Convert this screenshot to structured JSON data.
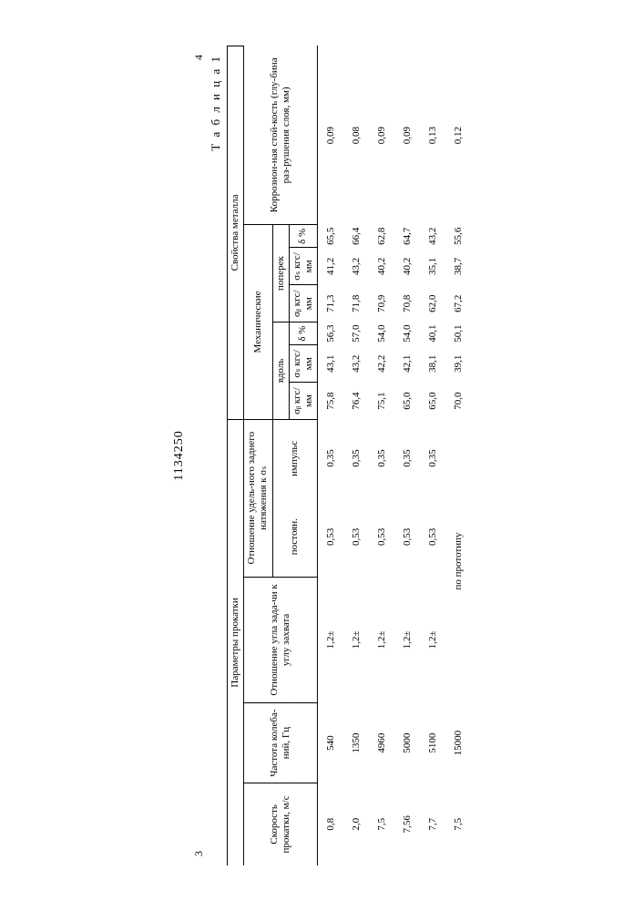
{
  "doc_number": "1134250",
  "page_left": "3",
  "page_right": "4",
  "table_title": "Т а б л и ц а 1",
  "headers": {
    "top_params": "Параметры прокатки",
    "top_props": "Свойства металла",
    "speed": "Скорость прокатки, м/с",
    "freq": "Частота колеба-ний, Гц",
    "angle_ratio": "Отношение угла зада-чи к углу захвата",
    "tension_ratio": "Отношение удель-ного заднего натяжения к σₛ",
    "postoyann": "постоян.",
    "impuls": "импульс",
    "mech": "Механические",
    "vdol": "вдоль",
    "poperek": "поперек",
    "sigma_b": "σᵦ кгс/мм",
    "sigma_s": "σₛ кгс/мм",
    "delta": "δ %",
    "corrosion": "Коррозион-ная стой-кость (глу-бина раз-рушения слоя, мм)"
  },
  "rows": [
    {
      "speed": "0,8",
      "freq": "540",
      "angle": "1,2±",
      "t1": "0,53",
      "t2": "0,35",
      "v_sb": "75,8",
      "v_ss": "43,1",
      "v_d": "56,3",
      "p_sb": "71,3",
      "p_ss": "41,2",
      "p_d": "65,5",
      "corr": "0,09"
    },
    {
      "speed": "2,0",
      "freq": "1350",
      "angle": "1,2±",
      "t1": "0,53",
      "t2": "0,35",
      "v_sb": "76,4",
      "v_ss": "43,2",
      "v_d": "57,0",
      "p_sb": "71,8",
      "p_ss": "43,2",
      "p_d": "66,4",
      "corr": "0,08"
    },
    {
      "speed": "7,5",
      "freq": "4960",
      "angle": "1,2±",
      "t1": "0,53",
      "t2": "0,35",
      "v_sb": "75,1",
      "v_ss": "42,2",
      "v_d": "54,0",
      "p_sb": "70,9",
      "p_ss": "40,2",
      "p_d": "62,8",
      "corr": "0,09"
    },
    {
      "speed": "7,56",
      "freq": "5000",
      "angle": "1,2±",
      "t1": "0,53",
      "t2": "0,35",
      "v_sb": "65,0",
      "v_ss": "42,1",
      "v_d": "54,0",
      "p_sb": "70,8",
      "p_ss": "40,2",
      "p_d": "64,7",
      "corr": "0,09"
    },
    {
      "speed": "7,7",
      "freq": "5100",
      "angle": "1,2±",
      "t1": "0,53",
      "t2": "0,35",
      "v_sb": "65,0",
      "v_ss": "38,1",
      "v_d": "40,1",
      "p_sb": "62,0",
      "p_ss": "35,1",
      "p_d": "43,2",
      "corr": "0,13"
    },
    {
      "speed": "7,5",
      "freq": "15000",
      "angle": "по прототипу",
      "t1": "",
      "t2": "",
      "v_sb": "70,0",
      "v_ss": "39,1",
      "v_d": "50,1",
      "p_sb": "67,2",
      "p_ss": "38,7",
      "p_d": "55,6",
      "corr": "0,12"
    }
  ],
  "style": {
    "font_family": "Times New Roman",
    "font_size_body": 11,
    "font_size_doc": 14,
    "bg": "#ffffff",
    "border_color": "#000000",
    "rotation": -90
  }
}
